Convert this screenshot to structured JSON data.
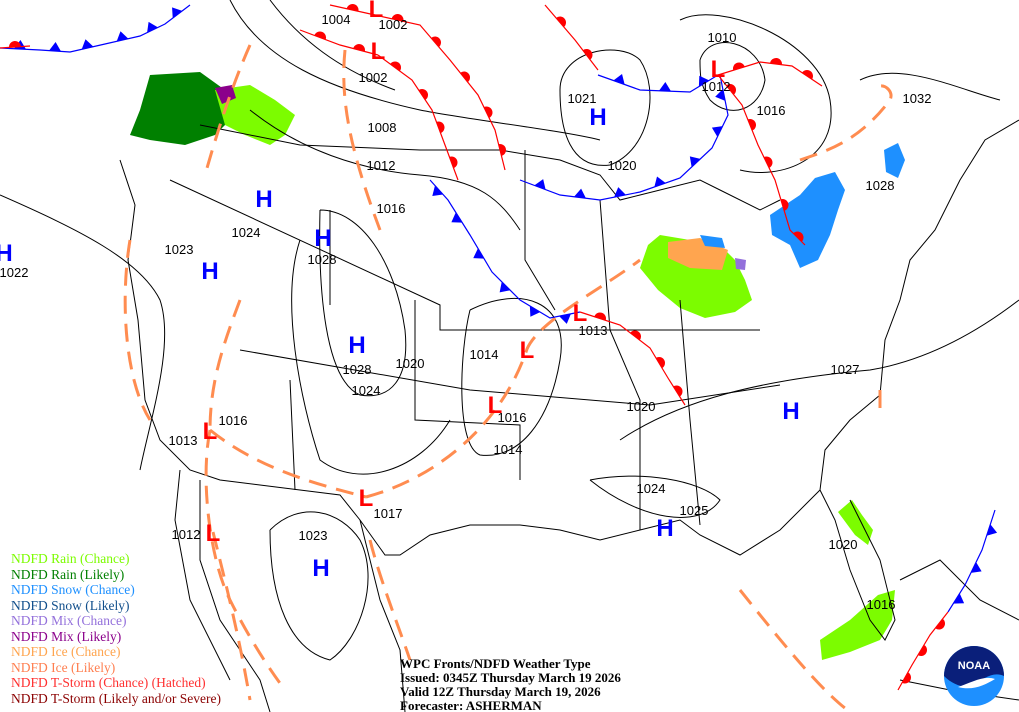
{
  "map": {
    "pressure_labels": [
      "1004",
      "1002",
      "1002",
      "1008",
      "1012",
      "1016",
      "1028",
      "1024",
      "1023",
      "1022",
      "1021",
      "1020",
      "1010",
      "1012",
      "1016",
      "1032",
      "1028",
      "1014",
      "1020",
      "1028",
      "1024",
      "1013",
      "1016",
      "1014",
      "1020",
      "1027",
      "1016",
      "1013",
      "1017",
      "1012",
      "1023",
      "1024",
      "1025",
      "1020",
      "1016"
    ],
    "high_centers": [
      "H",
      "H",
      "H",
      "H",
      "H",
      "H",
      "H",
      "H",
      "H"
    ],
    "low_centers": [
      "L",
      "L",
      "L",
      "L",
      "L",
      "L",
      "L",
      "L",
      "L"
    ],
    "colors": {
      "high": "#0000ff",
      "low": "#ff0000",
      "cold_front": "#0000ff",
      "warm_front": "#ff0000",
      "trough": "#ff8c50",
      "isobar": "#000000"
    }
  },
  "legend": [
    {
      "label": "NDFD Rain (Chance)",
      "color": "#7cfc00"
    },
    {
      "label": "NDFD Rain (Likely)",
      "color": "#008000"
    },
    {
      "label": "NDFD Snow (Chance)",
      "color": "#1e90ff"
    },
    {
      "label": "NDFD Snow (Likely)",
      "color": "#104e8b"
    },
    {
      "label": "NDFD Mix (Chance)",
      "color": "#9370db"
    },
    {
      "label": "NDFD Mix (Likely)",
      "color": "#8b008b"
    },
    {
      "label": "NDFD Ice (Chance)",
      "color": "#ffa54f"
    },
    {
      "label": "NDFD Ice (Likely)",
      "color": "#ff7f50"
    },
    {
      "label": "NDFD T-Storm (Chance) (Hatched)",
      "color": "#ff3030"
    },
    {
      "label": "NDFD T-Storm (Likely and/or Severe)",
      "color": "#8b0000"
    }
  ],
  "caption": {
    "title": "WPC Fronts/NDFD Weather Type",
    "issued": "Issued: 0345Z Thursday March 19 2026",
    "valid": "Valid 12Z Thursday March 19, 2026",
    "forecaster": "Forecaster: ASHERMAN"
  },
  "logo": {
    "text": "NOAA"
  }
}
